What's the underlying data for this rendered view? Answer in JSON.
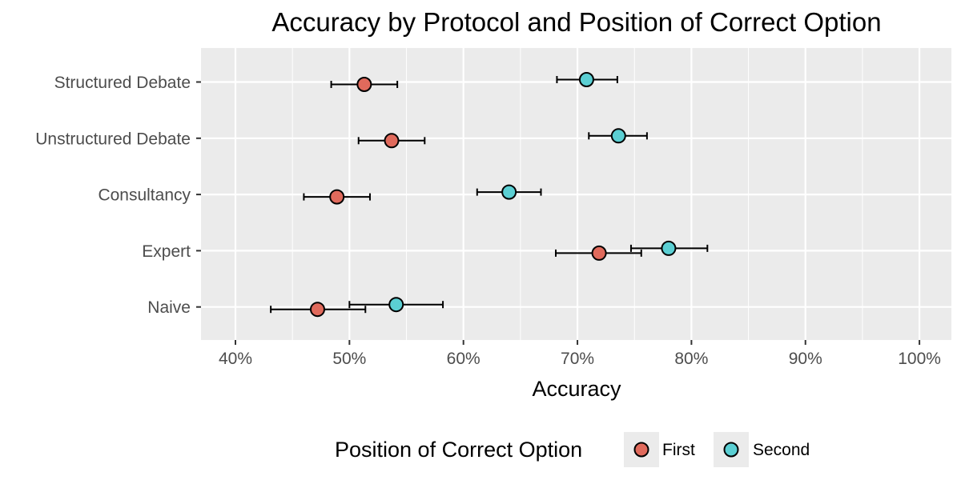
{
  "chart_data": {
    "type": "scatter",
    "title": "Accuracy by Protocol and Position of Correct Option",
    "xlabel": "Accuracy",
    "ylabel": "",
    "xlim": [
      0.37,
      1.03
    ],
    "x_ticks": [
      0.4,
      0.5,
      0.6,
      0.7,
      0.8,
      0.9,
      1.0
    ],
    "x_tick_labels": [
      "40%",
      "50%",
      "60%",
      "70%",
      "80%",
      "90%",
      "100%"
    ],
    "categories": [
      "Structured Debate",
      "Unstructured Debate",
      "Consultancy",
      "Expert",
      "Naive"
    ],
    "grid": true,
    "error_bars": true,
    "legend": {
      "title": "Position of Correct Option",
      "placement": "bottom"
    },
    "series": [
      {
        "name": "First",
        "color": "#E06A5C",
        "values": [
          0.513,
          0.537,
          0.489,
          0.719,
          0.472
        ],
        "lower": [
          0.484,
          0.508,
          0.46,
          0.681,
          0.431
        ],
        "upper": [
          0.542,
          0.566,
          0.518,
          0.756,
          0.514
        ]
      },
      {
        "name": "Second",
        "color": "#5BCFD3",
        "values": [
          0.708,
          0.736,
          0.64,
          0.78,
          0.541
        ],
        "lower": [
          0.682,
          0.71,
          0.612,
          0.747,
          0.5
        ],
        "upper": [
          0.735,
          0.761,
          0.668,
          0.814,
          0.582
        ]
      }
    ]
  }
}
